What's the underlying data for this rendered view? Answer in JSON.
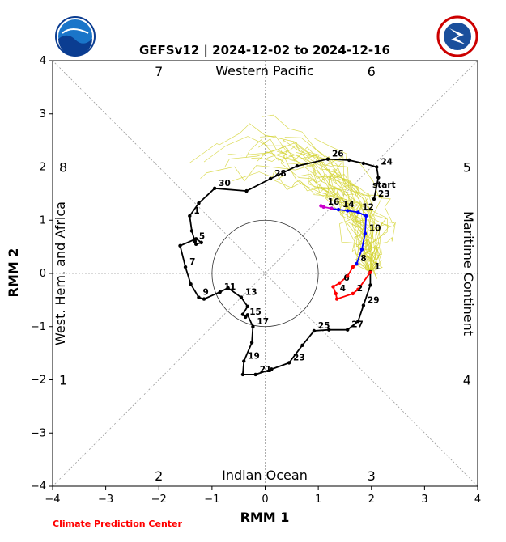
{
  "chart_data": {
    "type": "line",
    "title": "GEFSv12 | 2024-12-02 to 2024-12-16",
    "xlabel": "RMM 1",
    "ylabel": "RMM 2",
    "xlim": [
      -4,
      4
    ],
    "ylim": [
      -4,
      4
    ],
    "xticks": [
      "−4",
      "−3",
      "−2",
      "−1",
      "0",
      "1",
      "2",
      "3",
      "4"
    ],
    "yticks": [
      "−4",
      "−3",
      "−2",
      "−1",
      "0",
      "1",
      "2",
      "3",
      "4"
    ],
    "regions": {
      "top": "Western Pacific",
      "bottom": "Indian Ocean",
      "left": "West. Hem. and Africa",
      "right": "Maritime Continent"
    },
    "phases": [
      {
        "label": "7",
        "x": -2.0,
        "y": 3.8
      },
      {
        "label": "6",
        "x": 2.0,
        "y": 3.8
      },
      {
        "label": "8",
        "x": -3.8,
        "y": 2.0
      },
      {
        "label": "5",
        "x": 3.8,
        "y": 2.0
      },
      {
        "label": "1",
        "x": -3.8,
        "y": -2.0
      },
      {
        "label": "4",
        "x": 3.8,
        "y": -2.0
      },
      {
        "label": "2",
        "x": -2.0,
        "y": -3.8
      },
      {
        "label": "3",
        "x": 2.0,
        "y": -3.8
      }
    ],
    "unit_circle_radius": 1,
    "colors": {
      "observed": "#000000",
      "week1": "#ff0000",
      "week2": "#0000ff",
      "week3": "#cc00cc",
      "ensemble": "#d4d432"
    },
    "series": [
      {
        "role": "observed",
        "points": [
          {
            "x": 2.05,
            "y": 1.4,
            "label": "23"
          },
          {
            "x": 2.13,
            "y": 1.8
          },
          {
            "x": 2.1,
            "y": 2.0,
            "label": "24"
          },
          {
            "x": 1.85,
            "y": 2.07
          },
          {
            "x": 1.58,
            "y": 2.13
          },
          {
            "x": 1.18,
            "y": 2.15,
            "label": "26"
          },
          {
            "x": 0.6,
            "y": 2.02
          },
          {
            "x": 0.1,
            "y": 1.78,
            "label": "28"
          },
          {
            "x": -0.35,
            "y": 1.55
          },
          {
            "x": -0.95,
            "y": 1.6,
            "label": "30"
          },
          {
            "x": -1.25,
            "y": 1.32
          },
          {
            "x": -1.42,
            "y": 1.08,
            "label": "1"
          },
          {
            "x": -1.38,
            "y": 0.8
          },
          {
            "x": -1.32,
            "y": 0.6,
            "label": "5"
          },
          {
            "x": -1.3,
            "y": 0.55
          },
          {
            "x": -1.2,
            "y": 0.58
          },
          {
            "x": -1.3,
            "y": 0.65
          },
          {
            "x": -1.6,
            "y": 0.52
          },
          {
            "x": -1.5,
            "y": 0.12,
            "label": "7"
          },
          {
            "x": -1.4,
            "y": -0.2
          },
          {
            "x": -1.25,
            "y": -0.45,
            "label": "9"
          },
          {
            "x": -1.15,
            "y": -0.48
          },
          {
            "x": -0.85,
            "y": -0.35,
            "label": "11"
          },
          {
            "x": -0.7,
            "y": -0.27
          },
          {
            "x": -0.45,
            "y": -0.45,
            "label": "13"
          },
          {
            "x": -0.33,
            "y": -0.62
          },
          {
            "x": -0.42,
            "y": -0.77
          },
          {
            "x": -0.37,
            "y": -0.82,
            "label": "15"
          },
          {
            "x": -0.33,
            "y": -0.78
          },
          {
            "x": -0.23,
            "y": -1.0,
            "label": "17"
          },
          {
            "x": -0.25,
            "y": -1.3
          },
          {
            "x": -0.4,
            "y": -1.65,
            "label": "19"
          },
          {
            "x": -0.42,
            "y": -1.9
          },
          {
            "x": -0.18,
            "y": -1.9,
            "label": "21"
          },
          {
            "x": 0.12,
            "y": -1.8
          },
          {
            "x": 0.45,
            "y": -1.68,
            "label": "23"
          },
          {
            "x": 0.7,
            "y": -1.35
          },
          {
            "x": 0.92,
            "y": -1.08,
            "label": "25"
          },
          {
            "x": 1.2,
            "y": -1.06
          },
          {
            "x": 1.55,
            "y": -1.06,
            "label": "27"
          },
          {
            "x": 1.75,
            "y": -0.9
          },
          {
            "x": 1.85,
            "y": -0.6,
            "label": "29"
          },
          {
            "x": 1.98,
            "y": -0.22
          },
          {
            "x": 1.98,
            "y": 0.03,
            "label": "1"
          }
        ]
      },
      {
        "role": "week1",
        "points": [
          {
            "x": 1.98,
            "y": 0.02
          },
          {
            "x": 1.75,
            "y": -0.3
          },
          {
            "x": 1.65,
            "y": -0.38,
            "label": "2"
          },
          {
            "x": 1.35,
            "y": -0.48
          },
          {
            "x": 1.33,
            "y": -0.38,
            "label": "4"
          },
          {
            "x": 1.28,
            "y": -0.25
          },
          {
            "x": 1.4,
            "y": -0.18,
            "label": "6"
          },
          {
            "x": 1.55,
            "y": -0.05
          },
          {
            "x": 1.65,
            "y": 0.12
          },
          {
            "x": 1.72,
            "y": 0.18,
            "label": "8"
          }
        ]
      },
      {
        "role": "week2",
        "points": [
          {
            "x": 1.72,
            "y": 0.18
          },
          {
            "x": 1.82,
            "y": 0.45
          },
          {
            "x": 1.88,
            "y": 0.75,
            "label": "10"
          },
          {
            "x": 1.9,
            "y": 1.08
          },
          {
            "x": 1.75,
            "y": 1.15,
            "label": "12"
          },
          {
            "x": 1.55,
            "y": 1.18
          },
          {
            "x": 1.38,
            "y": 1.2,
            "label": "14"
          },
          {
            "x": 1.25,
            "y": 1.22
          }
        ]
      },
      {
        "role": "week3",
        "points": [
          {
            "x": 1.25,
            "y": 1.22
          },
          {
            "x": 1.1,
            "y": 1.25,
            "label": "16"
          },
          {
            "x": 1.05,
            "y": 1.27
          }
        ]
      }
    ],
    "start_label": "start",
    "start_point": {
      "x": 2.05,
      "y": 1.4
    },
    "ensemble_members": 30
  },
  "logos": {
    "left": "NOAA",
    "right": "National Weather Service"
  },
  "footer": "Climate Prediction Center"
}
